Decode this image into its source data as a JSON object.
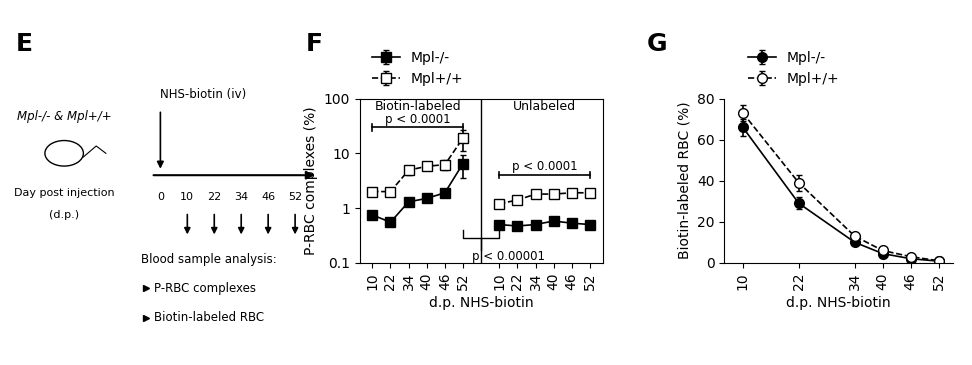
{
  "diagram": {
    "panel": "E",
    "mouse_label": "Mpl-/- & Mpl+/+",
    "injection": "NHS-biotin (iv)",
    "axis_label": [
      "Day post injection",
      "(d.p.)"
    ],
    "days": [
      0,
      10,
      22,
      34,
      46,
      52
    ],
    "analysis_title": "Blood sample analysis:",
    "analysis_items": [
      "P-RBC complexes",
      "Biotin-labeled RBC"
    ]
  },
  "chart_data": [
    {
      "type": "line",
      "panel": "F",
      "x_label": "d.p. NHS-biotin",
      "y_label": "P-RBC complexes (%)",
      "categories": [
        "10",
        "22",
        "34",
        "40",
        "46",
        "52",
        null,
        "10",
        "22",
        "34",
        "40",
        "46",
        "52"
      ],
      "group_labels": [
        "Biotin-labeled",
        "Unlabeled"
      ],
      "annotations": [
        "p < 0.0001",
        "p < 0.0001",
        "p < 0.00001"
      ],
      "log": "y",
      "ylim": [
        0.1,
        100
      ],
      "yticks": [
        0.1,
        1,
        10,
        100
      ],
      "legend": "lower left",
      "series": [
        {
          "name": "Mpl-/-",
          "color": "#000000",
          "marker": "square",
          "line_style": "solid",
          "values": [
            0.75,
            0.55,
            1.3,
            1.5,
            1.9,
            6.5,
            null,
            0.5,
            0.47,
            0.5,
            0.58,
            0.53,
            0.5
          ],
          "errors": [
            0.08,
            0.05,
            0.2,
            0.2,
            0.3,
            3,
            null,
            0.05,
            0.04,
            0.05,
            0.05,
            0.05,
            0.05
          ]
        },
        {
          "name": "Mpl+/+",
          "color": "#000000",
          "marker": "open_square",
          "line_style": "dashed",
          "values": [
            2.0,
            2.0,
            4.9,
            5.8,
            6.2,
            19,
            null,
            1.2,
            1.4,
            1.8,
            1.8,
            1.9,
            1.9
          ],
          "errors": [
            0.2,
            0.2,
            0.8,
            0.9,
            1.2,
            8,
            null,
            0.2,
            0.15,
            0.15,
            0.15,
            0.15,
            0.15
          ]
        }
      ]
    },
    {
      "type": "line",
      "panel": "G",
      "x_label": "d.p. NHS-biotin",
      "y_label": "Biotin-labeled RBC (%)",
      "x": [
        10,
        22,
        34,
        40,
        46,
        52
      ],
      "xlim": [
        6,
        55
      ],
      "xticks": [
        10,
        22,
        34,
        40,
        46,
        52
      ],
      "ylim": [
        0,
        80
      ],
      "yticks": [
        0,
        20,
        40,
        60,
        80
      ],
      "legend": "lower left",
      "series": [
        {
          "name": "Mpl-/-",
          "color": "#000000",
          "marker": "circle",
          "line_style": "solid",
          "values": [
            66,
            29,
            10,
            4.5,
            2,
            0.8
          ],
          "errors": [
            4,
            3,
            1.5,
            1,
            0.5,
            0.3
          ]
        },
        {
          "name": "Mpl+/+",
          "color": "#000000",
          "marker": "open_circle",
          "line_style": "dashed",
          "values": [
            73,
            39,
            13,
            6,
            3,
            1
          ],
          "errors": [
            4,
            4,
            1.5,
            1,
            0.5,
            0.3
          ]
        }
      ]
    }
  ]
}
